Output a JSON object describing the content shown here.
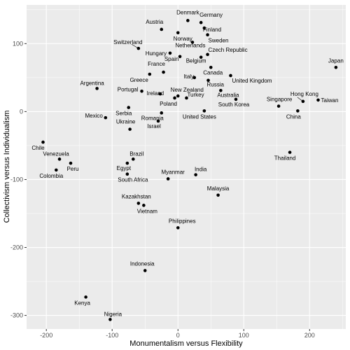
{
  "chart_data": {
    "type": "scatter",
    "xlabel": "Monumentalism versus Flexibility",
    "ylabel": "Collectivism versus Individualism",
    "xlim": [
      -230,
      255
    ],
    "ylim": [
      -320,
      157
    ],
    "xticks": [
      -200,
      -100,
      0,
      100,
      200
    ],
    "yticks": [
      -300,
      -200,
      -100,
      0,
      100
    ],
    "grid": true,
    "background": "#ebebeb",
    "grid_major_color": "#ffffff",
    "point_color": "#000000",
    "points": [
      {
        "label": "Denmark",
        "x": 15,
        "y": 134
      },
      {
        "label": "Germany",
        "x": 35,
        "y": 131
      },
      {
        "label": "Austria",
        "x": -25,
        "y": 121
      },
      {
        "label": "Finland",
        "x": 40,
        "y": 123
      },
      {
        "label": "Norway",
        "x": 0,
        "y": 116
      },
      {
        "label": "Sweden",
        "x": 45,
        "y": 113
      },
      {
        "label": "Switzerland",
        "x": -60,
        "y": 93
      },
      {
        "label": "Netherlands",
        "x": 22,
        "y": 102
      },
      {
        "label": "Hungary",
        "x": -12,
        "y": 86
      },
      {
        "label": "Czech Republic",
        "x": 45,
        "y": 84
      },
      {
        "label": "Spain",
        "x": 3,
        "y": 81
      },
      {
        "label": "Belgium",
        "x": 35,
        "y": 80
      },
      {
        "label": "France",
        "x": -22,
        "y": 58
      },
      {
        "label": "Canada",
        "x": 50,
        "y": 65
      },
      {
        "label": "Italy",
        "x": 25,
        "y": 50
      },
      {
        "label": "United Kingdom",
        "x": 80,
        "y": 53
      },
      {
        "label": "Greece",
        "x": -43,
        "y": 55
      },
      {
        "label": "Russia",
        "x": 46,
        "y": 46
      },
      {
        "label": "Japan",
        "x": 240,
        "y": 65
      },
      {
        "label": "Argentina",
        "x": -123,
        "y": 34
      },
      {
        "label": "Portugal",
        "x": -55,
        "y": 30
      },
      {
        "label": "Ireland",
        "x": -27,
        "y": 26
      },
      {
        "label": "New Zealand",
        "x": 0,
        "y": 23
      },
      {
        "label": "Australia",
        "x": 65,
        "y": 31
      },
      {
        "label": "Hong Kong",
        "x": 190,
        "y": 15
      },
      {
        "label": "Taiwan",
        "x": 213,
        "y": 17
      },
      {
        "label": "Poland",
        "x": -5,
        "y": 20
      },
      {
        "label": "Turkey",
        "x": 13,
        "y": 20
      },
      {
        "label": "South Korea",
        "x": 88,
        "y": 18
      },
      {
        "label": "Singapore",
        "x": 153,
        "y": 8
      },
      {
        "label": "China",
        "x": 182,
        "y": 1
      },
      {
        "label": "Serbia",
        "x": -75,
        "y": 6
      },
      {
        "label": "United States",
        "x": 40,
        "y": 1
      },
      {
        "label": "Mexico",
        "x": -110,
        "y": -9
      },
      {
        "label": "Romania",
        "x": -25,
        "y": -2
      },
      {
        "label": "Israel",
        "x": -30,
        "y": -14
      },
      {
        "label": "Ukraine",
        "x": -73,
        "y": -26
      },
      {
        "label": "Chile",
        "x": -205,
        "y": -45
      },
      {
        "label": "Thailand",
        "x": 170,
        "y": -60
      },
      {
        "label": "Brazil",
        "x": -68,
        "y": -70
      },
      {
        "label": "Venezuela",
        "x": -180,
        "y": -70
      },
      {
        "label": "Peru",
        "x": -163,
        "y": -76
      },
      {
        "label": "Egypt",
        "x": -77,
        "y": -76
      },
      {
        "label": "Colombia",
        "x": -185,
        "y": -86
      },
      {
        "label": "South Africa",
        "x": -77,
        "y": -92
      },
      {
        "label": "India",
        "x": 27,
        "y": -93
      },
      {
        "label": "Myanmar",
        "x": -15,
        "y": -99
      },
      {
        "label": "Malaysia",
        "x": 61,
        "y": -123
      },
      {
        "label": "Kazakhstan",
        "x": -60,
        "y": -135
      },
      {
        "label": "Vietnam",
        "x": -52,
        "y": -138
      },
      {
        "label": "Philippines",
        "x": 0,
        "y": -171
      },
      {
        "label": "Indonesia",
        "x": -50,
        "y": -234
      },
      {
        "label": "Kenya",
        "x": -140,
        "y": -273
      },
      {
        "label": "Nigeria",
        "x": -103,
        "y": -306
      }
    ]
  }
}
